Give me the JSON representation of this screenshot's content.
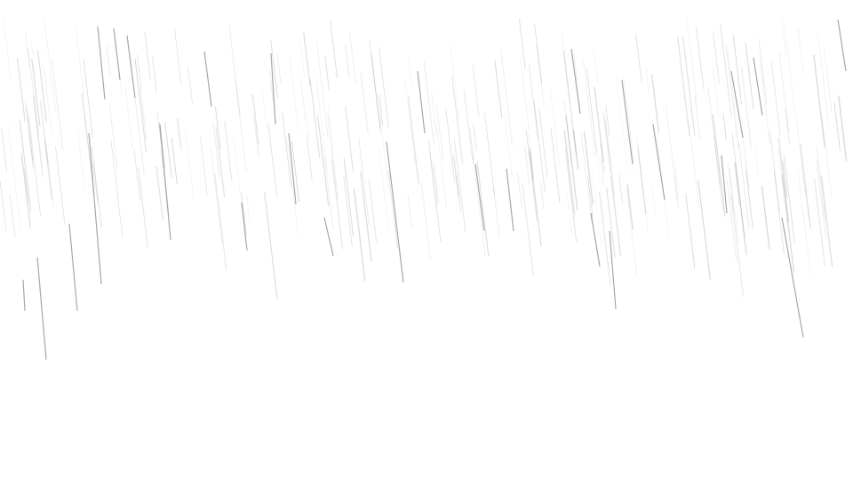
{
  "scene": {
    "background_color": "#ffffff",
    "streak_color": "#8a8a8a"
  }
}
